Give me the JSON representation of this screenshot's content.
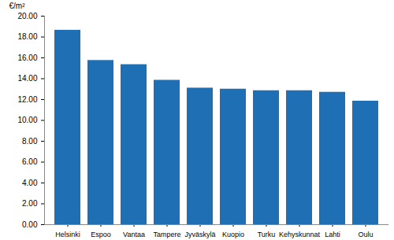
{
  "chart_data": {
    "type": "bar",
    "y_label": "€/m²",
    "categories": [
      "Helsinki",
      "Espoo",
      "Vantaa",
      "Tampere",
      "Jyväskylä",
      "Kuopio",
      "Turku",
      "Kehyskunnat",
      "Lahti",
      "Oulu"
    ],
    "values": [
      18.65,
      15.75,
      15.35,
      13.85,
      13.1,
      13.0,
      12.85,
      12.85,
      12.7,
      11.85
    ],
    "color": "#1f6fb4",
    "ylim": [
      0,
      20
    ],
    "yticks": [
      {
        "value": 0,
        "label": "0.00"
      },
      {
        "value": 2,
        "label": "2.00"
      },
      {
        "value": 4,
        "label": "4.00"
      },
      {
        "value": 6,
        "label": "6.00"
      },
      {
        "value": 8,
        "label": "8.00"
      },
      {
        "value": 10,
        "label": "10.00"
      },
      {
        "value": 12,
        "label": "12.00"
      },
      {
        "value": 14,
        "label": "14.00"
      },
      {
        "value": 16,
        "label": "16.00"
      },
      {
        "value": 18,
        "label": "18.00"
      },
      {
        "value": 20,
        "label": "20.00"
      }
    ],
    "grid": false
  }
}
